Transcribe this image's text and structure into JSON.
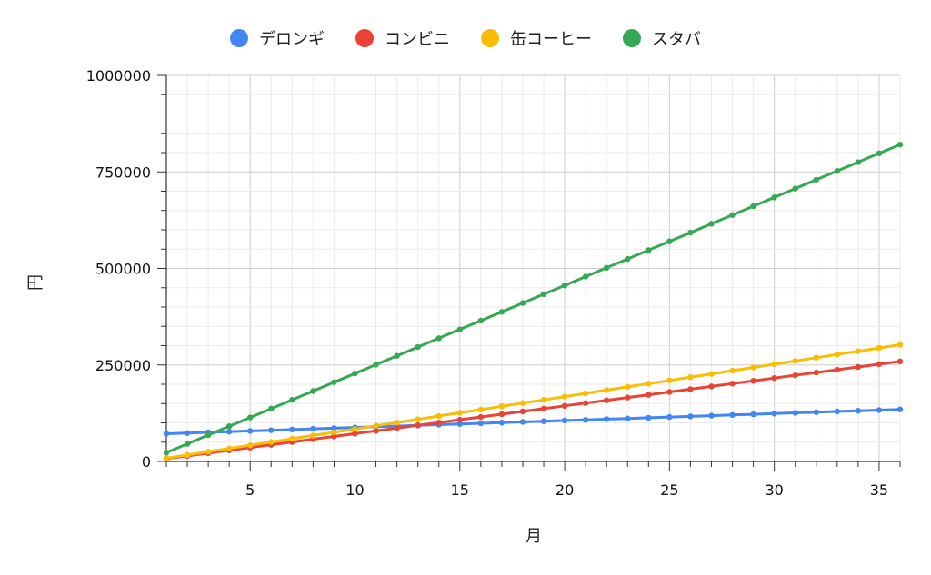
{
  "chart_data": {
    "type": "line",
    "xlabel": "月",
    "ylabel": "円",
    "xlim": [
      1,
      36
    ],
    "ylim": [
      0,
      1000000
    ],
    "x_ticks": [
      5,
      10,
      15,
      20,
      25,
      30,
      35
    ],
    "y_ticks": [
      0,
      250000,
      500000,
      750000,
      1000000
    ],
    "grid": true,
    "legend_position": "top-center",
    "x": [
      1,
      2,
      3,
      4,
      5,
      6,
      7,
      8,
      9,
      10,
      11,
      12,
      13,
      14,
      15,
      16,
      17,
      18,
      19,
      20,
      21,
      22,
      23,
      24,
      25,
      26,
      27,
      28,
      29,
      30,
      31,
      32,
      33,
      34,
      35,
      36
    ],
    "series": [
      {
        "name": "デロンギ",
        "color": "#4285F4",
        "values": [
          71800,
          73600,
          75400,
          77200,
          79000,
          80800,
          82600,
          84400,
          86200,
          88000,
          89800,
          91600,
          93400,
          95200,
          97000,
          98800,
          100600,
          102400,
          104200,
          106000,
          107800,
          109600,
          111400,
          113200,
          115000,
          116800,
          118600,
          120400,
          122200,
          124000,
          125800,
          127600,
          129400,
          131200,
          133000,
          134800
        ]
      },
      {
        "name": "コンビニ",
        "color": "#EA4335",
        "values": [
          7200,
          14400,
          21600,
          28800,
          36000,
          43200,
          50400,
          57600,
          64800,
          72000,
          79200,
          86400,
          93600,
          100800,
          108000,
          115200,
          122400,
          129600,
          136800,
          144000,
          151200,
          158400,
          165600,
          172800,
          180000,
          187200,
          194400,
          201600,
          208800,
          216000,
          223200,
          230400,
          237600,
          244800,
          252000,
          259200
        ]
      },
      {
        "name": "缶コーヒー",
        "color": "#FBBC04",
        "values": [
          8400,
          16800,
          25200,
          33600,
          42000,
          50400,
          58800,
          67200,
          75600,
          84000,
          92400,
          100800,
          109200,
          117600,
          126000,
          134400,
          142800,
          151200,
          159600,
          168000,
          176400,
          184800,
          193200,
          201600,
          210000,
          218400,
          226800,
          235200,
          243600,
          252000,
          260400,
          268800,
          277200,
          285600,
          294000,
          302400
        ]
      },
      {
        "name": "スタバ",
        "color": "#34A853",
        "values": [
          22800,
          45600,
          68400,
          91200,
          114000,
          136800,
          159600,
          182400,
          205200,
          228000,
          250800,
          273600,
          296400,
          319200,
          342000,
          364800,
          387600,
          410400,
          433200,
          456000,
          478800,
          501600,
          524400,
          547200,
          570000,
          592800,
          615600,
          638400,
          661200,
          684000,
          706800,
          729600,
          752400,
          775200,
          798000,
          820800
        ]
      }
    ]
  }
}
